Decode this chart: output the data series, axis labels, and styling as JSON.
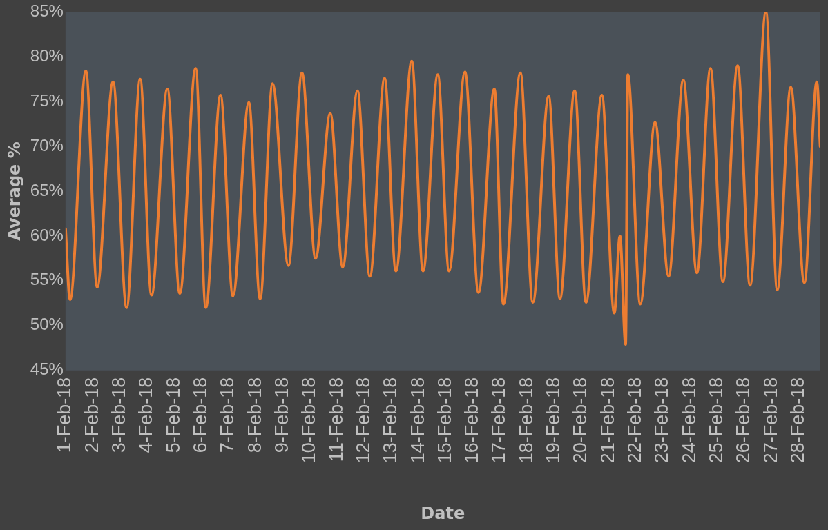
{
  "chart_data": {
    "type": "line",
    "xlabel": "Date",
    "ylabel": "Average %",
    "x": [
      "--02-01T00:00",
      "--02-01T04:00",
      "--02-01T18:00",
      "--02-02T04:00",
      "--02-02T18:00",
      "--02-03T06:00",
      "--02-03T18:00",
      "--02-04T04:00",
      "--02-04T18:00",
      "--02-05T05:00",
      "--02-05T19:00",
      "--02-06T04:00",
      "--02-06T17:00",
      "--02-07T04:00",
      "--02-07T18:00",
      "--02-08T04:00",
      "--02-08T15:00",
      "--02-09T05:00",
      "--02-09T17:00",
      "--02-10T05:00",
      "--02-10T18:00",
      "--02-11T05:00",
      "--02-11T18:00",
      "--02-12T05:00",
      "--02-12T18:00",
      "--02-13T04:00",
      "--02-13T18:00",
      "--02-14T04:00",
      "--02-14T17:00",
      "--02-15T03:00",
      "--02-15T17:00",
      "--02-16T05:00",
      "--02-16T19:00",
      "--02-17T03:00",
      "--02-17T18:00",
      "--02-18T05:00",
      "--02-18T19:00",
      "--02-19T05:00",
      "--02-19T18:00",
      "--02-20T04:00",
      "--02-20T18:00",
      "--02-21T05:00",
      "--02-21T10:00",
      "--02-21T15:00",
      "--02-21T17:00",
      "--02-22T04:00",
      "--02-22T17:00",
      "--02-23T05:00",
      "--02-23T18:00",
      "--02-24T06:00",
      "--02-24T18:00",
      "--02-25T05:00",
      "--02-25T18:00",
      "--02-26T05:00",
      "--02-26T19:00",
      "--02-27T05:00",
      "--02-27T17:00",
      "--02-28T05:00",
      "--02-28T16:00",
      "--02-28T19:00"
    ],
    "series": [
      {
        "color": "#ed7d31",
        "values": [
          60.8,
          52.9,
          78.4,
          54.3,
          77.2,
          52.0,
          77.5,
          53.4,
          76.4,
          53.6,
          78.7,
          52.0,
          75.7,
          53.3,
          74.9,
          53.0,
          77.0,
          56.7,
          78.2,
          57.5,
          73.7,
          56.5,
          76.2,
          55.5,
          77.6,
          56.1,
          79.5,
          56.1,
          78.0,
          56.1,
          78.3,
          53.7,
          76.4,
          52.4,
          78.2,
          52.6,
          75.6,
          53.0,
          76.2,
          52.6,
          75.7,
          51.4,
          60.0,
          47.9,
          78.0,
          52.4,
          72.7,
          55.5,
          77.4,
          55.9,
          78.7,
          54.9,
          79.0,
          54.5,
          85.0,
          54.0,
          76.6,
          54.8,
          77.2,
          70.0
        ]
      }
    ],
    "xlim": [
      "--02-01T00:00",
      "--02-28T19:00"
    ],
    "xticks": [
      {
        "value": "--02-01",
        "label": "1-Feb-18"
      },
      {
        "value": "--02-02",
        "label": "2-Feb-18"
      },
      {
        "value": "--02-03",
        "label": "3-Feb-18"
      },
      {
        "value": "--02-04",
        "label": "4-Feb-18"
      },
      {
        "value": "--02-05",
        "label": "5-Feb-18"
      },
      {
        "value": "--02-06",
        "label": "6-Feb-18"
      },
      {
        "value": "--02-07",
        "label": "7-Feb-18"
      },
      {
        "value": "--02-08",
        "label": "8-Feb-18"
      },
      {
        "value": "--02-09",
        "label": "9-Feb-18"
      },
      {
        "value": "--02-10",
        "label": "10-Feb-18"
      },
      {
        "value": "--02-11",
        "label": "11-Feb-18"
      },
      {
        "value": "--02-12",
        "label": "12-Feb-18"
      },
      {
        "value": "--02-13",
        "label": "13-Feb-18"
      },
      {
        "value": "--02-14",
        "label": "14-Feb-18"
      },
      {
        "value": "--02-15",
        "label": "15-Feb-18"
      },
      {
        "value": "--02-16",
        "label": "16-Feb-18"
      },
      {
        "value": "--02-17",
        "label": "17-Feb-18"
      },
      {
        "value": "--02-18",
        "label": "18-Feb-18"
      },
      {
        "value": "--02-19",
        "label": "19-Feb-18"
      },
      {
        "value": "--02-20",
        "label": "20-Feb-18"
      },
      {
        "value": "--02-21",
        "label": "21-Feb-18"
      },
      {
        "value": "--02-22",
        "label": "22-Feb-18"
      },
      {
        "value": "--02-23",
        "label": "23-Feb-18"
      },
      {
        "value": "--02-24",
        "label": "24-Feb-18"
      },
      {
        "value": "--02-25",
        "label": "25-Feb-18"
      },
      {
        "value": "--02-26",
        "label": "26-Feb-18"
      },
      {
        "value": "--02-27",
        "label": "27-Feb-18"
      },
      {
        "value": "--02-28",
        "label": "28-Feb-18"
      }
    ],
    "ylim": [
      45,
      85
    ],
    "yticks": [
      {
        "value": 45,
        "label": "45%"
      },
      {
        "value": 50,
        "label": "50%"
      },
      {
        "value": 55,
        "label": "55%"
      },
      {
        "value": 60,
        "label": "60%"
      },
      {
        "value": 65,
        "label": "65%"
      },
      {
        "value": 70,
        "label": "70%"
      },
      {
        "value": 75,
        "label": "75%"
      },
      {
        "value": 80,
        "label": "80%"
      },
      {
        "value": 85,
        "label": "85%"
      }
    ],
    "grid": false,
    "legend": false,
    "marker": "none",
    "line_style": "solid"
  }
}
